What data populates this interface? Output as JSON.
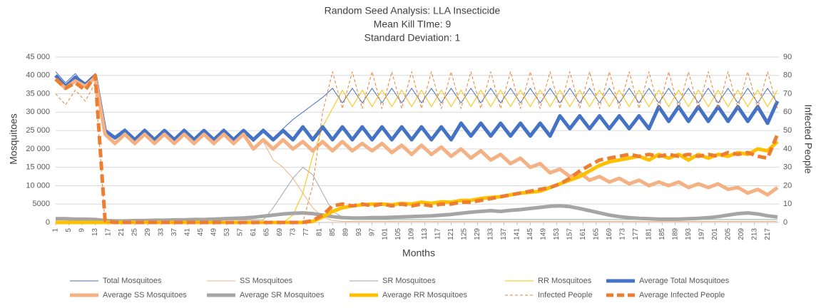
{
  "chart_data": {
    "type": "line",
    "title": [
      "Random Seed Analysis: LLA Insecticide",
      "Mean Kill TIme: 9",
      "Standard Deviation: 1"
    ],
    "x_label": "Months",
    "y_label": "Mosquitoes",
    "y2_label": "Infected People",
    "x": [
      1,
      4,
      7,
      10,
      13,
      16,
      19,
      22,
      25,
      28,
      31,
      34,
      37,
      40,
      43,
      46,
      49,
      52,
      55,
      58,
      61,
      64,
      67,
      70,
      73,
      76,
      79,
      82,
      85,
      88,
      91,
      94,
      97,
      100,
      103,
      106,
      109,
      112,
      115,
      118,
      121,
      124,
      127,
      130,
      133,
      136,
      139,
      142,
      145,
      148,
      151,
      154,
      157,
      160,
      163,
      166,
      169,
      172,
      175,
      178,
      181,
      184,
      187,
      190,
      193,
      196,
      199,
      202,
      205,
      208,
      211,
      214,
      217,
      220
    ],
    "xlim": [
      1,
      220
    ],
    "xticks": [
      1,
      5,
      9,
      13,
      17,
      21,
      25,
      29,
      33,
      37,
      41,
      45,
      49,
      53,
      57,
      61,
      65,
      69,
      73,
      77,
      81,
      85,
      89,
      93,
      97,
      101,
      105,
      109,
      113,
      117,
      121,
      125,
      129,
      133,
      137,
      141,
      145,
      149,
      153,
      157,
      161,
      165,
      169,
      173,
      177,
      181,
      185,
      189,
      193,
      197,
      201,
      205,
      209,
      213,
      217
    ],
    "ylim": [
      0,
      45000
    ],
    "yticks": [
      0,
      5000,
      {
        "value": 10000,
        "label": "10 000"
      },
      {
        "value": 15000,
        "label": "15 000"
      },
      {
        "value": 20000,
        "label": "20 000"
      },
      {
        "value": 25000,
        "label": "25 000"
      },
      {
        "value": 30000,
        "label": "30 000"
      },
      {
        "value": 35000,
        "label": "35 000"
      },
      {
        "value": 40000,
        "label": "40 000"
      },
      {
        "value": 45000,
        "label": "45 000"
      }
    ],
    "y2lim": [
      0,
      90
    ],
    "y2ticks": [
      0,
      10,
      20,
      30,
      40,
      50,
      60,
      70,
      80,
      90
    ],
    "grid": true,
    "legend": "bottom",
    "series": [
      {
        "name": "Total Mosquitoes",
        "color": "#4472c4",
        "width": 1,
        "dashed": false,
        "values": [
          41000,
          38000,
          40500,
          37000,
          40500,
          24500,
          23500,
          25500,
          22000,
          25500,
          22000,
          25000,
          22500,
          25500,
          22000,
          25000,
          22500,
          25500,
          22500,
          25000,
          22000,
          25500,
          22500,
          25500,
          28000,
          30000,
          32000,
          34000,
          36500,
          32500,
          36500,
          32500,
          36500,
          32500,
          36500,
          32500,
          36500,
          32500,
          36500,
          32500,
          36500,
          32500,
          36500,
          32500,
          36500,
          32500,
          36500,
          32500,
          36500,
          32500,
          36500,
          32500,
          36500,
          32500,
          36500,
          32500,
          36500,
          32500,
          36500,
          32500,
          36500,
          32500,
          36500,
          32500,
          36500,
          32500,
          36500,
          32500,
          36500,
          32500,
          36500,
          32500,
          36500,
          32500
        ]
      },
      {
        "name": "SS Mosquitoes",
        "color": "#f4b183",
        "width": 1,
        "dashed": false,
        "values": [
          40000,
          37000,
          39000,
          36500,
          40000,
          24500,
          21000,
          24500,
          21000,
          24000,
          21500,
          24000,
          21500,
          24000,
          21000,
          24000,
          21000,
          23500,
          21000,
          23500,
          20500,
          22000,
          17000,
          15000,
          12000,
          8000,
          4000,
          1500,
          500,
          300,
          300,
          300,
          300,
          300,
          300,
          300,
          300,
          300,
          300,
          300,
          300,
          300,
          300,
          300,
          300,
          300,
          300,
          300,
          300,
          300,
          300,
          300,
          300,
          300,
          300,
          300,
          300,
          300,
          300,
          300,
          300,
          300,
          300,
          300,
          300,
          300,
          300,
          300,
          300,
          300,
          300,
          300,
          300,
          300
        ]
      },
      {
        "name": "SR Mosquitoes",
        "color": "#a5a5a5",
        "width": 1,
        "dashed": false,
        "values": [
          800,
          800,
          800,
          800,
          800,
          500,
          500,
          500,
          500,
          500,
          500,
          500,
          500,
          500,
          500,
          700,
          700,
          700,
          700,
          700,
          700,
          700,
          4000,
          8000,
          12000,
          15000,
          13000,
          8000,
          3000,
          1500,
          800,
          800,
          800,
          800,
          800,
          800,
          800,
          800,
          800,
          800,
          800,
          800,
          800,
          800,
          800,
          800,
          800,
          800,
          800,
          800,
          800,
          800,
          800,
          800,
          800,
          800,
          800,
          800,
          800,
          800,
          800,
          800,
          800,
          800,
          800,
          800,
          800,
          800,
          800,
          800,
          800,
          800,
          800,
          800
        ]
      },
      {
        "name": "RR Mosquitoes",
        "color": "#ffc000",
        "width": 1,
        "dashed": false,
        "values": [
          0,
          0,
          0,
          0,
          0,
          0,
          0,
          0,
          0,
          0,
          0,
          0,
          0,
          0,
          0,
          0,
          0,
          0,
          0,
          0,
          0,
          0,
          0,
          0,
          2000,
          8000,
          18000,
          26000,
          31000,
          36000,
          31500,
          36000,
          31500,
          36000,
          31500,
          36000,
          31500,
          36000,
          31500,
          36000,
          31500,
          36000,
          31500,
          36000,
          31500,
          36000,
          31500,
          36000,
          31500,
          36000,
          31500,
          36000,
          31500,
          36000,
          31500,
          36000,
          31500,
          36000,
          31500,
          36000,
          31500,
          36000,
          31500,
          36000,
          31500,
          36000,
          31500,
          36000,
          31500,
          36000,
          31500,
          36000,
          31500,
          36000
        ]
      },
      {
        "name": "Average Total Mosquitoes",
        "color": "#4472c4",
        "width": 5,
        "dashed": false,
        "values": [
          40000,
          37000,
          39500,
          37500,
          40000,
          25000,
          23000,
          25000,
          22500,
          25000,
          22500,
          25000,
          22500,
          25000,
          22500,
          25000,
          22500,
          25000,
          22500,
          25000,
          22500,
          25000,
          22500,
          25000,
          22500,
          26000,
          22500,
          26000,
          22500,
          26000,
          22500,
          26000,
          22500,
          26000,
          22500,
          26000,
          22500,
          26000,
          22500,
          26000,
          22500,
          27000,
          23500,
          27000,
          23500,
          27000,
          23500,
          27000,
          23500,
          27000,
          23500,
          29000,
          25500,
          29000,
          25500,
          29000,
          25500,
          29000,
          25500,
          29000,
          25500,
          31500,
          27500,
          31500,
          27500,
          31500,
          27500,
          31500,
          27500,
          31500,
          27500,
          31500,
          27000,
          33000
        ]
      },
      {
        "name": "Average SS Mosquitoes",
        "color": "#f4b183",
        "width": 5,
        "dashed": false,
        "values": [
          39000,
          36500,
          38500,
          37000,
          39500,
          24000,
          21500,
          24000,
          21500,
          24000,
          21500,
          24000,
          21500,
          24000,
          21500,
          24000,
          21500,
          24000,
          21500,
          24000,
          20000,
          22500,
          20000,
          22500,
          20000,
          22000,
          19500,
          22000,
          19500,
          22000,
          19500,
          21500,
          19500,
          21500,
          19000,
          21000,
          18500,
          21000,
          18500,
          20500,
          18000,
          20000,
          17500,
          19500,
          17000,
          18500,
          16000,
          17500,
          15000,
          16000,
          13500,
          14500,
          12500,
          13500,
          11500,
          12500,
          11000,
          12000,
          10500,
          11500,
          10000,
          11000,
          10000,
          11000,
          9500,
          10500,
          9500,
          10500,
          9000,
          9500,
          8000,
          9000,
          7500,
          9500
        ]
      },
      {
        "name": "Average SR Mosquitoes",
        "color": "#a5a5a5",
        "width": 5,
        "dashed": false,
        "values": [
          1000,
          1000,
          900,
          900,
          800,
          500,
          400,
          400,
          500,
          500,
          600,
          600,
          700,
          700,
          800,
          800,
          900,
          1000,
          1100,
          1200,
          1400,
          1700,
          2000,
          2300,
          2500,
          2600,
          2400,
          2000,
          1600,
          1300,
          1200,
          1200,
          1300,
          1300,
          1400,
          1500,
          1600,
          1700,
          1800,
          2000,
          2200,
          2500,
          2800,
          3000,
          3200,
          3000,
          3300,
          3500,
          3800,
          4100,
          4400,
          4500,
          4300,
          3800,
          3200,
          2600,
          2000,
          1600,
          1300,
          1100,
          1000,
          900,
          900,
          900,
          1000,
          1100,
          1300,
          1600,
          2000,
          2400,
          2600,
          2300,
          1800,
          1500
        ]
      },
      {
        "name": "Average RR Mosquitoes",
        "color": "#ffc000",
        "width": 5,
        "dashed": false,
        "values": [
          0,
          0,
          0,
          0,
          0,
          0,
          0,
          0,
          0,
          0,
          0,
          0,
          0,
          0,
          0,
          0,
          0,
          0,
          0,
          0,
          0,
          0,
          0,
          0,
          0,
          0,
          300,
          1500,
          3000,
          4000,
          4500,
          4800,
          5000,
          5000,
          4800,
          5200,
          5000,
          5500,
          5200,
          5600,
          5500,
          6000,
          6000,
          6500,
          6800,
          7000,
          7500,
          8000,
          8200,
          8500,
          9500,
          10500,
          11500,
          12500,
          14000,
          15500,
          16500,
          17000,
          17500,
          18000,
          17000,
          18500,
          17500,
          18500,
          17000,
          18500,
          17500,
          18500,
          18000,
          19000,
          18500,
          20000,
          19500,
          22000
        ]
      },
      {
        "name": "Infected People",
        "color": "#ed7d31",
        "width": 1,
        "dashed": true,
        "axis": "y2",
        "values": [
          70,
          64,
          72,
          66,
          76,
          0,
          0,
          0,
          0,
          0,
          0,
          0,
          0,
          0,
          0,
          0,
          0,
          0,
          0,
          0,
          0,
          0,
          0,
          0,
          0,
          0,
          20,
          60,
          82,
          62,
          82,
          62,
          82,
          62,
          82,
          62,
          82,
          62,
          82,
          62,
          82,
          62,
          82,
          62,
          82,
          62,
          82,
          62,
          82,
          62,
          82,
          62,
          82,
          62,
          82,
          62,
          82,
          62,
          82,
          62,
          82,
          62,
          82,
          62,
          82,
          62,
          82,
          62,
          82,
          62,
          82,
          62,
          82,
          62
        ]
      },
      {
        "name": "Average Infected People",
        "color": "#ed7d31",
        "width": 5,
        "dashed": true,
        "axis": "y2",
        "values": [
          78,
          73,
          76,
          72,
          80,
          1,
          0,
          0,
          0,
          0,
          0,
          0,
          0,
          0,
          0,
          0,
          0,
          0,
          0,
          0,
          0,
          0,
          0,
          0,
          0,
          0,
          1,
          4,
          9,
          10,
          9,
          10,
          9,
          10,
          9,
          10,
          9,
          10,
          9,
          10,
          10,
          11,
          11,
          12,
          13,
          14,
          15,
          16,
          17,
          18,
          19,
          21,
          24,
          28,
          31,
          34,
          35,
          36,
          37,
          36,
          37,
          36,
          37,
          36,
          37,
          36,
          37,
          36,
          38,
          37,
          38,
          36,
          35,
          48
        ]
      }
    ]
  }
}
